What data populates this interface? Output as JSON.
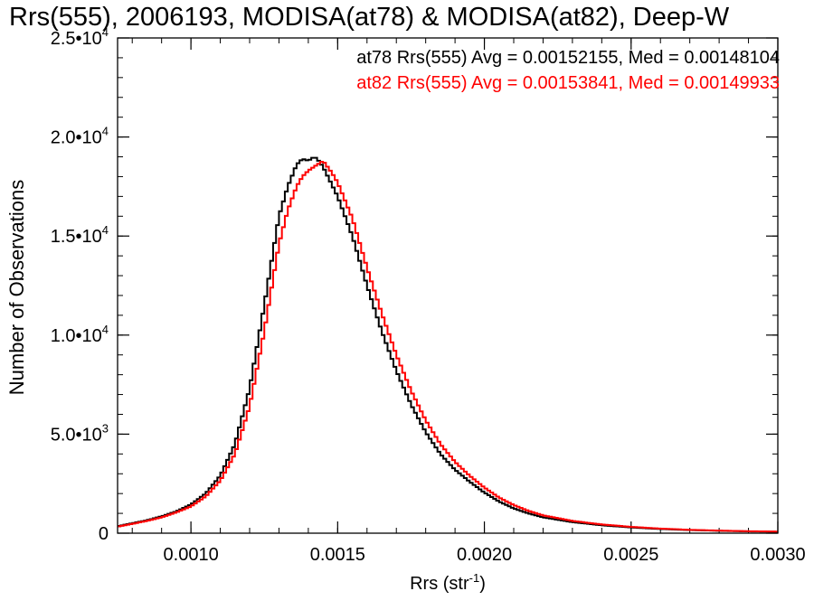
{
  "chart_data": {
    "type": "line",
    "title": "Rrs(555), 2006193, MODISA(at78) & MODISA(at82), Deep-W",
    "xlabel": "Rrs (str",
    "xlabel_sup": "-1",
    "xlabel_close": ")",
    "ylabel": "Number of Observations",
    "xlim": [
      0.00075,
      0.003
    ],
    "ylim": [
      0,
      25000
    ],
    "xticks": [
      {
        "value": 0.001,
        "label": "0.0010"
      },
      {
        "value": 0.0015,
        "label": "0.0015"
      },
      {
        "value": 0.002,
        "label": "0.0020"
      },
      {
        "value": 0.0025,
        "label": "0.0025"
      },
      {
        "value": 0.003,
        "label": "0.0030"
      }
    ],
    "yticks": [
      {
        "value": 0,
        "mantissa": "0",
        "exp": ""
      },
      {
        "value": 5000,
        "mantissa": "5.0•10",
        "exp": "3"
      },
      {
        "value": 10000,
        "mantissa": "1.0•10",
        "exp": "4"
      },
      {
        "value": 15000,
        "mantissa": "1.5•10",
        "exp": "4"
      },
      {
        "value": 20000,
        "mantissa": "2.0•10",
        "exp": "4"
      },
      {
        "value": 25000,
        "mantissa": "2.5•10",
        "exp": "4"
      }
    ],
    "grid": false,
    "legend_position": "top-right",
    "series": [
      {
        "name": "at78",
        "color": "#000000",
        "stats": "at78 Rrs(555) Avg = 0.00152155, Med = 0.00148104",
        "x": [
          0.00075,
          0.0008,
          0.00085,
          0.0009,
          0.00095,
          0.001,
          0.00105,
          0.0011,
          0.00115,
          0.0012,
          0.00125,
          0.0013,
          0.00133,
          0.00136,
          0.00138,
          0.0014,
          0.00142,
          0.00143,
          0.00145,
          0.00148,
          0.0015,
          0.00155,
          0.0016,
          0.00165,
          0.0017,
          0.00175,
          0.0018,
          0.00185,
          0.0019,
          0.00195,
          0.002,
          0.00205,
          0.0021,
          0.00215,
          0.0022,
          0.0023,
          0.0024,
          0.0025,
          0.0026,
          0.0027,
          0.0028,
          0.0029,
          0.003
        ],
        "y": [
          350,
          500,
          650,
          850,
          1100,
          1450,
          2000,
          2900,
          4500,
          7300,
          11500,
          16000,
          17500,
          18600,
          18900,
          18800,
          19000,
          18900,
          18500,
          17600,
          17000,
          15000,
          12500,
          10200,
          8200,
          6500,
          5100,
          4000,
          3200,
          2600,
          2050,
          1600,
          1250,
          1000,
          800,
          560,
          400,
          290,
          210,
          160,
          120,
          90,
          70
        ]
      },
      {
        "name": "at82",
        "color": "#ff0000",
        "stats": "at82 Rrs(555) Avg = 0.00153841, Med = 0.00149933",
        "x": [
          0.00075,
          0.0008,
          0.00085,
          0.0009,
          0.00095,
          0.001,
          0.00105,
          0.0011,
          0.00115,
          0.0012,
          0.00125,
          0.0013,
          0.00133,
          0.00136,
          0.00138,
          0.0014,
          0.00142,
          0.00144,
          0.00145,
          0.00146,
          0.00148,
          0.0015,
          0.00155,
          0.0016,
          0.00165,
          0.0017,
          0.00175,
          0.0018,
          0.00185,
          0.0019,
          0.00195,
          0.002,
          0.00205,
          0.0021,
          0.00215,
          0.0022,
          0.0023,
          0.0024,
          0.0025,
          0.0026,
          0.0027,
          0.0028,
          0.0029,
          0.003
        ],
        "y": [
          330,
          470,
          620,
          800,
          1050,
          1350,
          1850,
          2650,
          4000,
          6400,
          10200,
          14600,
          16300,
          17500,
          18000,
          18300,
          18500,
          18700,
          18800,
          18600,
          18200,
          17700,
          15900,
          13400,
          11100,
          9000,
          7200,
          5700,
          4500,
          3600,
          2900,
          2300,
          1800,
          1420,
          1130,
          900,
          620,
          440,
          320,
          230,
          170,
          130,
          100,
          80
        ]
      }
    ]
  }
}
